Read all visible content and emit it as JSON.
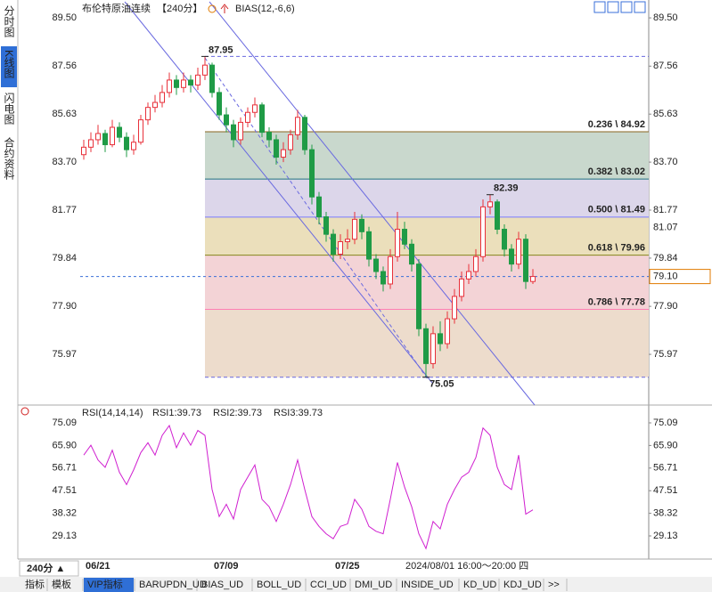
{
  "ui": {
    "sidebar": [
      "分时图",
      "K线图",
      "闪电图",
      "合约资料"
    ],
    "period_button": "240分 ▲",
    "tabs": [
      "指标",
      "模板",
      "VIP指标",
      "BARUPDN_UD",
      "BIAS_UD",
      "BOLL_UD",
      "CCI_UD",
      "DMI_UD",
      "INSIDE_UD",
      "KD_UD",
      "KDJ_UD",
      ">>"
    ]
  },
  "chart_data": [
    {
      "type": "candlestick",
      "title": "布伦特原油连续",
      "period": "【240分】",
      "indicator": "BIAS(12,-6,6)",
      "colors": {
        "up": "#e8303a",
        "down": "#1f9b46"
      },
      "categories": [
        null,
        "06/21",
        null,
        null,
        null,
        null,
        null,
        null,
        null,
        null,
        null,
        null,
        null,
        null,
        null,
        null,
        null,
        null,
        null,
        "07/09",
        null,
        null,
        null,
        null,
        null,
        null,
        null,
        null,
        null,
        null,
        null,
        null,
        null,
        null,
        null,
        null,
        "07/25",
        null,
        null,
        null,
        null,
        null,
        null,
        null,
        null,
        null,
        null,
        null,
        null,
        null,
        null,
        null,
        null,
        null,
        null,
        null,
        null,
        null,
        null,
        null,
        null,
        null,
        null,
        null
      ],
      "ohlc": [
        [
          84.0,
          84.6,
          83.8,
          84.3
        ],
        [
          84.3,
          84.9,
          84.1,
          84.6
        ],
        [
          84.6,
          85.2,
          84.4,
          84.85
        ],
        [
          84.85,
          85.0,
          84.1,
          84.4
        ],
        [
          84.4,
          85.4,
          84.3,
          85.1
        ],
        [
          85.1,
          85.3,
          84.5,
          84.7
        ],
        [
          84.7,
          84.9,
          83.9,
          84.2
        ],
        [
          84.2,
          84.8,
          84.0,
          84.5
        ],
        [
          84.5,
          85.6,
          84.4,
          85.4
        ],
        [
          85.4,
          86.1,
          85.2,
          85.9
        ],
        [
          85.9,
          86.4,
          85.7,
          86.1
        ],
        [
          86.1,
          86.8,
          85.9,
          86.5
        ],
        [
          86.5,
          87.3,
          86.3,
          87.0
        ],
        [
          87.0,
          87.2,
          86.4,
          86.7
        ],
        [
          86.7,
          87.3,
          86.5,
          87.0
        ],
        [
          87.0,
          87.2,
          86.5,
          86.8
        ],
        [
          86.8,
          87.5,
          86.6,
          87.2
        ],
        [
          87.2,
          87.95,
          87.0,
          87.6
        ],
        [
          87.6,
          87.7,
          86.3,
          86.5
        ],
        [
          86.5,
          86.7,
          85.4,
          85.6
        ],
        [
          85.6,
          85.9,
          84.9,
          85.2
        ],
        [
          85.2,
          85.4,
          84.3,
          84.6
        ],
        [
          84.6,
          85.5,
          84.4,
          85.3
        ],
        [
          85.3,
          85.9,
          85.1,
          85.7
        ],
        [
          85.7,
          86.3,
          85.5,
          86.0
        ],
        [
          86.0,
          86.1,
          84.7,
          84.9
        ],
        [
          84.9,
          85.1,
          84.3,
          84.6
        ],
        [
          84.6,
          84.8,
          83.6,
          83.9
        ],
        [
          83.9,
          84.5,
          83.7,
          84.2
        ],
        [
          84.2,
          85.0,
          84.0,
          84.8
        ],
        [
          84.8,
          85.8,
          84.6,
          85.5
        ],
        [
          85.5,
          85.6,
          84.0,
          84.2
        ],
        [
          84.2,
          84.4,
          82.0,
          82.3
        ],
        [
          82.3,
          82.5,
          81.2,
          81.5
        ],
        [
          81.5,
          81.7,
          80.5,
          80.8
        ],
        [
          80.8,
          81.0,
          79.7,
          80.0
        ],
        [
          80.0,
          80.8,
          79.8,
          80.5
        ],
        [
          80.5,
          81.0,
          80.2,
          80.6
        ],
        [
          80.6,
          81.7,
          80.4,
          81.4
        ],
        [
          81.4,
          81.6,
          80.6,
          80.9
        ],
        [
          80.9,
          81.1,
          79.5,
          79.8
        ],
        [
          79.8,
          80.0,
          79.0,
          79.3
        ],
        [
          79.3,
          79.5,
          78.5,
          78.8
        ],
        [
          78.8,
          80.2,
          78.6,
          79.9
        ],
        [
          79.9,
          81.7,
          79.7,
          81.0
        ],
        [
          81.0,
          81.3,
          80.2,
          80.4
        ],
        [
          80.4,
          80.6,
          79.3,
          79.6
        ],
        [
          79.6,
          79.8,
          76.7,
          77.0
        ],
        [
          77.0,
          77.2,
          75.05,
          75.6
        ],
        [
          75.6,
          77.1,
          75.4,
          76.8
        ],
        [
          76.8,
          77.3,
          76.1,
          76.4
        ],
        [
          76.4,
          77.7,
          76.2,
          77.4
        ],
        [
          77.4,
          78.6,
          77.2,
          78.3
        ],
        [
          78.3,
          79.3,
          78.1,
          79.0
        ],
        [
          79.0,
          79.6,
          78.8,
          79.3
        ],
        [
          79.3,
          80.2,
          79.1,
          79.9
        ],
        [
          79.9,
          82.2,
          79.7,
          81.9
        ],
        [
          81.9,
          82.39,
          81.6,
          82.1
        ],
        [
          82.1,
          82.2,
          80.8,
          81.0
        ],
        [
          81.0,
          81.2,
          79.9,
          80.2
        ],
        [
          80.2,
          80.4,
          79.3,
          79.6
        ],
        [
          79.6,
          80.9,
          79.4,
          80.6
        ],
        [
          80.6,
          80.8,
          78.6,
          78.9
        ],
        [
          78.9,
          79.4,
          78.8,
          79.1
        ]
      ],
      "ylim": [
        74.11,
        90.04
      ],
      "yticks": [
        {
          "value": 89.5,
          "label": "89.50"
        },
        87.56,
        85.63,
        {
          "value": 83.7,
          "label": "83.70"
        },
        81.77,
        79.84,
        {
          "value": 77.9,
          "label": "77.90"
        },
        75.97
      ],
      "fib_top": 87.95,
      "fib_levels": [
        {
          "value": 84.92,
          "label": "0.236 \\ 84.92",
          "color": "#8a6420",
          "fill": "#c9d8cd"
        },
        {
          "value": 83.02,
          "label": "0.382 \\ 83.02",
          "color": "#1f7480",
          "fill": "#dcd6ea"
        },
        {
          "value": 81.49,
          "label": "0.500 \\ 81.49",
          "color": "#7a7aff",
          "fill": "#ebdfbb"
        },
        {
          "value": 79.96,
          "label": "0.618 \\ 79.96",
          "color": "#86861c",
          "fill": "#f3d3d6"
        },
        {
          "value": 77.78,
          "label": "0.786 \\ 77.78",
          "color": "#ff7fb4",
          "fill": "#eddccc"
        }
      ],
      "fib_bottom": 75.05,
      "annotations": [
        87.95,
        82.39,
        75.05
      ],
      "last_price": {
        "value": 79.1,
        "label": "79.10"
      },
      "crosshair_price": 81.07,
      "crosshair_time": "2024/08/01 16:00～20:00 四"
    },
    {
      "type": "line",
      "title": "RSI(14,14,14)",
      "legend": [
        {
          "text": "RSI1:39.73",
          "color": "#222222"
        },
        {
          "text": "RSI2:39.73",
          "color": "#2030c0"
        },
        {
          "text": "RSI3:39.73",
          "color": "#d020d0"
        }
      ],
      "series": [
        {
          "color": "#d020d0",
          "values": [
            62,
            66,
            60,
            57,
            64,
            55,
            50,
            56,
            63,
            67,
            62,
            70,
            74,
            65,
            71,
            66,
            72,
            70,
            48,
            37,
            42,
            36,
            48,
            53,
            58,
            44,
            41,
            35,
            42,
            50,
            60,
            48,
            37,
            33,
            30,
            28,
            33,
            34,
            44,
            40,
            33,
            31,
            30,
            44,
            59,
            49,
            41,
            30,
            24,
            35,
            32,
            42,
            48,
            53,
            55,
            61,
            73,
            70,
            57,
            50,
            48,
            62,
            38,
            39.73
          ]
        }
      ],
      "ylim": [
        19.0,
        81.6
      ],
      "yticks": [
        75.09,
        {
          "value": 65.9,
          "label": "65.90"
        },
        56.71,
        47.51,
        38.32,
        29.13
      ]
    }
  ]
}
